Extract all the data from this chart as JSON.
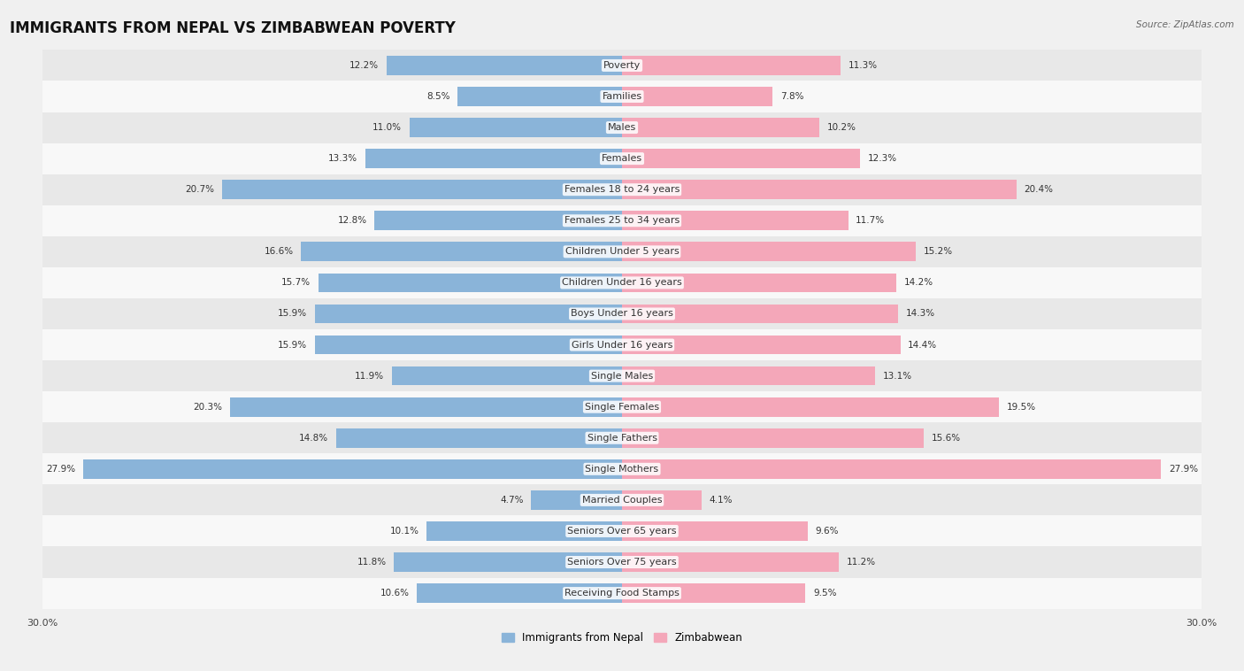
{
  "title": "IMMIGRANTS FROM NEPAL VS ZIMBABWEAN POVERTY",
  "source": "Source: ZipAtlas.com",
  "categories": [
    "Poverty",
    "Families",
    "Males",
    "Females",
    "Females 18 to 24 years",
    "Females 25 to 34 years",
    "Children Under 5 years",
    "Children Under 16 years",
    "Boys Under 16 years",
    "Girls Under 16 years",
    "Single Males",
    "Single Females",
    "Single Fathers",
    "Single Mothers",
    "Married Couples",
    "Seniors Over 65 years",
    "Seniors Over 75 years",
    "Receiving Food Stamps"
  ],
  "nepal_values": [
    12.2,
    8.5,
    11.0,
    13.3,
    20.7,
    12.8,
    16.6,
    15.7,
    15.9,
    15.9,
    11.9,
    20.3,
    14.8,
    27.9,
    4.7,
    10.1,
    11.8,
    10.6
  ],
  "zimbabwe_values": [
    11.3,
    7.8,
    10.2,
    12.3,
    20.4,
    11.7,
    15.2,
    14.2,
    14.3,
    14.4,
    13.1,
    19.5,
    15.6,
    27.9,
    4.1,
    9.6,
    11.2,
    9.5
  ],
  "nepal_color": "#8ab4d9",
  "zimbabwe_color": "#f4a7b9",
  "nepal_label": "Immigrants from Nepal",
  "zimbabwe_label": "Zimbabwean",
  "max_val": 30.0,
  "bg_color": "#f0f0f0",
  "row_color_even": "#e8e8e8",
  "row_color_odd": "#f8f8f8",
  "title_fontsize": 12,
  "label_fontsize": 8,
  "value_fontsize": 7.5
}
